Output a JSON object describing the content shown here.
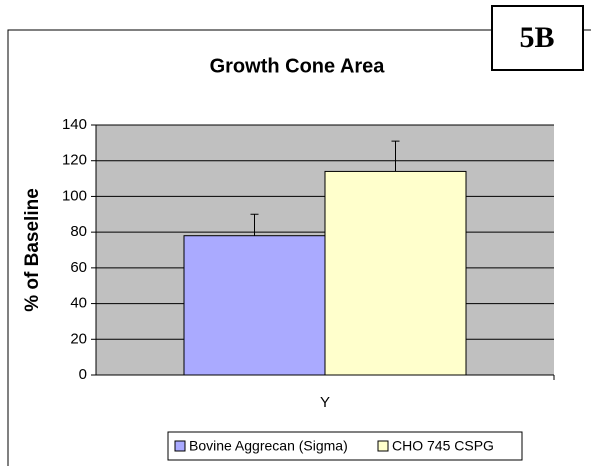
{
  "chart_data": {
    "type": "bar",
    "title": "Growth Cone Area",
    "panel_label": "5B",
    "y_label": "% of Baseline",
    "categories": [
      "Y"
    ],
    "series": [
      {
        "name": "Bovine Aggrecan (Sigma)",
        "color": "#aaaaff",
        "values": [
          78
        ],
        "errors": [
          12
        ]
      },
      {
        "name": "CHO 745 CSPG",
        "color": "#ffffcc",
        "values": [
          114
        ],
        "errors": [
          17
        ]
      }
    ],
    "ylim": [
      0,
      140
    ],
    "yticks": [
      0,
      20,
      40,
      60,
      80,
      100,
      120,
      140
    ],
    "grid": true,
    "legend": "bottom"
  }
}
